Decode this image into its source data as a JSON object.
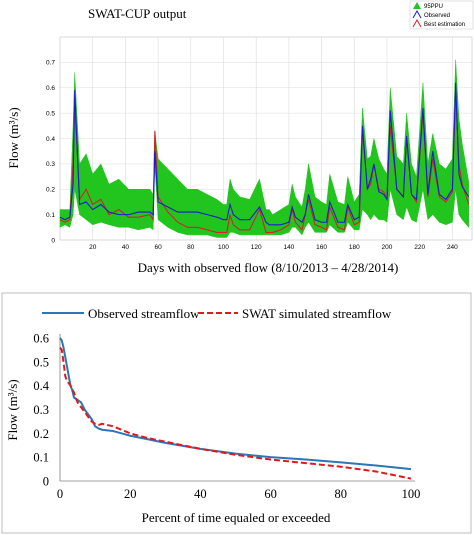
{
  "chart_data": [
    {
      "type": "area",
      "title": "SWAT-CUP output",
      "xlabel": "Days with observed flow (8/10/2013 – 4/28/2014)",
      "ylabel": "Flow (m³/s)",
      "xlim": [
        0,
        252
      ],
      "ylim": [
        0,
        0.8
      ],
      "x_ticks": [
        "20",
        "40",
        "60",
        "80",
        "100",
        "120",
        "140",
        "160",
        "180",
        "200",
        "220",
        "240"
      ],
      "y_ticks": [
        "0",
        "0.1",
        "0.2",
        "0.3",
        "0.4",
        "0.5",
        "0.6",
        "0.7"
      ],
      "grid": true,
      "legend_position": "top-right",
      "colors": {
        "band": "#22c51e",
        "observed": "#1c1ccf",
        "estimation": "#d4202a"
      },
      "series": [
        {
          "name": "95PPU",
          "kind": "band",
          "x": [
            0,
            3,
            6,
            8,
            9,
            12,
            16,
            20,
            25,
            30,
            36,
            42,
            48,
            55,
            57,
            58,
            60,
            66,
            72,
            78,
            84,
            90,
            96,
            100,
            102,
            104,
            106,
            110,
            116,
            122,
            126,
            128,
            130,
            135,
            140,
            142,
            144,
            148,
            150,
            152,
            156,
            160,
            163,
            165,
            170,
            174,
            176,
            180,
            183,
            185,
            188,
            190,
            192,
            195,
            198,
            200,
            202,
            206,
            210,
            212,
            215,
            218,
            222,
            225,
            228,
            232,
            236,
            240,
            242,
            244,
            246,
            250
          ],
          "lower": [
            0.05,
            0.06,
            0.05,
            0.1,
            0.2,
            0.1,
            0.08,
            0.06,
            0.07,
            0.06,
            0.05,
            0.05,
            0.04,
            0.05,
            0.04,
            0.3,
            0.08,
            0.05,
            0.03,
            0.02,
            0.02,
            0.02,
            0.01,
            0.01,
            0.01,
            0.03,
            0.03,
            0.02,
            0.02,
            0.02,
            0.02,
            0.02,
            0.02,
            0.02,
            0.03,
            0.05,
            0.05,
            0.02,
            0.05,
            0.07,
            0.03,
            0.03,
            0.03,
            0.06,
            0.03,
            0.03,
            0.07,
            0.04,
            0.04,
            0.12,
            0.1,
            0.08,
            0.1,
            0.08,
            0.08,
            0.07,
            0.2,
            0.1,
            0.08,
            0.13,
            0.08,
            0.07,
            0.2,
            0.08,
            0.1,
            0.07,
            0.06,
            0.07,
            0.2,
            0.1,
            0.08,
            0.05
          ],
          "upper": [
            0.12,
            0.12,
            0.12,
            0.45,
            0.66,
            0.3,
            0.34,
            0.26,
            0.3,
            0.22,
            0.24,
            0.2,
            0.2,
            0.2,
            0.18,
            0.43,
            0.32,
            0.28,
            0.24,
            0.2,
            0.2,
            0.18,
            0.16,
            0.14,
            0.14,
            0.24,
            0.2,
            0.17,
            0.16,
            0.24,
            0.12,
            0.12,
            0.1,
            0.12,
            0.14,
            0.22,
            0.17,
            0.13,
            0.2,
            0.3,
            0.17,
            0.15,
            0.14,
            0.26,
            0.15,
            0.14,
            0.25,
            0.15,
            0.18,
            0.52,
            0.32,
            0.33,
            0.4,
            0.32,
            0.28,
            0.26,
            0.6,
            0.33,
            0.3,
            0.5,
            0.3,
            0.25,
            0.62,
            0.3,
            0.42,
            0.3,
            0.28,
            0.32,
            0.71,
            0.48,
            0.38,
            0.23
          ]
        },
        {
          "name": "Observed",
          "x": [
            0,
            3,
            6,
            8,
            9,
            12,
            16,
            20,
            25,
            30,
            36,
            42,
            48,
            55,
            57,
            58,
            60,
            66,
            72,
            78,
            84,
            90,
            96,
            100,
            102,
            104,
            106,
            110,
            116,
            122,
            126,
            128,
            130,
            135,
            140,
            142,
            144,
            148,
            150,
            152,
            156,
            160,
            163,
            165,
            170,
            174,
            176,
            180,
            183,
            185,
            188,
            190,
            192,
            195,
            198,
            200,
            202,
            206,
            210,
            212,
            215,
            218,
            222,
            225,
            228,
            232,
            236,
            240,
            242,
            244,
            246,
            250
          ],
          "y": [
            0.09,
            0.08,
            0.09,
            0.22,
            0.59,
            0.14,
            0.15,
            0.12,
            0.14,
            0.11,
            0.1,
            0.1,
            0.11,
            0.11,
            0.1,
            0.35,
            0.15,
            0.13,
            0.11,
            0.11,
            0.11,
            0.1,
            0.09,
            0.08,
            0.08,
            0.14,
            0.1,
            0.08,
            0.08,
            0.13,
            0.07,
            0.06,
            0.06,
            0.06,
            0.07,
            0.13,
            0.09,
            0.07,
            0.1,
            0.18,
            0.08,
            0.07,
            0.07,
            0.15,
            0.07,
            0.07,
            0.14,
            0.08,
            0.09,
            0.45,
            0.2,
            0.24,
            0.3,
            0.19,
            0.18,
            0.16,
            0.51,
            0.2,
            0.17,
            0.41,
            0.18,
            0.16,
            0.52,
            0.18,
            0.35,
            0.18,
            0.16,
            0.2,
            0.62,
            0.26,
            0.21,
            0.17
          ]
        },
        {
          "name": "Best estimation",
          "x": [
            0,
            3,
            6,
            8,
            9,
            12,
            16,
            20,
            25,
            30,
            36,
            42,
            48,
            55,
            57,
            58,
            60,
            66,
            72,
            78,
            84,
            90,
            96,
            100,
            102,
            104,
            106,
            110,
            116,
            122,
            126,
            128,
            130,
            135,
            140,
            142,
            144,
            148,
            150,
            152,
            156,
            160,
            163,
            165,
            170,
            174,
            176,
            180,
            183,
            185,
            188,
            190,
            192,
            195,
            198,
            200,
            202,
            206,
            210,
            212,
            215,
            218,
            222,
            225,
            228,
            232,
            236,
            240,
            242,
            244,
            246,
            250
          ],
          "y": [
            0.08,
            0.07,
            0.08,
            0.3,
            0.54,
            0.16,
            0.2,
            0.14,
            0.16,
            0.1,
            0.12,
            0.09,
            0.09,
            0.1,
            0.08,
            0.43,
            0.17,
            0.11,
            0.07,
            0.05,
            0.05,
            0.04,
            0.03,
            0.03,
            0.03,
            0.1,
            0.06,
            0.04,
            0.04,
            0.12,
            0.03,
            0.03,
            0.03,
            0.04,
            0.06,
            0.12,
            0.07,
            0.04,
            0.1,
            0.16,
            0.06,
            0.05,
            0.04,
            0.13,
            0.05,
            0.04,
            0.13,
            0.06,
            0.07,
            0.43,
            0.2,
            0.22,
            0.3,
            0.2,
            0.19,
            0.16,
            0.45,
            0.2,
            0.17,
            0.4,
            0.18,
            0.15,
            0.5,
            0.17,
            0.32,
            0.17,
            0.15,
            0.19,
            0.58,
            0.3,
            0.22,
            0.14
          ]
        }
      ]
    },
    {
      "type": "line",
      "title": "",
      "xlabel": "Percent of time equaled or exceeded",
      "ylabel": "Flow (m³/s)",
      "xlim": [
        0,
        100
      ],
      "ylim": [
        0,
        0.6
      ],
      "x_ticks": [
        "0",
        "20",
        "40",
        "60",
        "80",
        "100"
      ],
      "y_ticks": [
        "0",
        "0.1",
        "0.2",
        "0.3",
        "0.4",
        "0.5",
        "0.6"
      ],
      "grid": false,
      "legend_position": "top",
      "colors": {
        "observed": "#2e75b6",
        "simulated": "#e0191d"
      },
      "series": [
        {
          "name": "Observed streamflow",
          "x": [
            0,
            0.5,
            1,
            1.5,
            2,
            2.5,
            3,
            3.5,
            4,
            5,
            6,
            7,
            8,
            9,
            10,
            11,
            12,
            15,
            20,
            25,
            30,
            40,
            50,
            60,
            70,
            80,
            90,
            100
          ],
          "y": [
            0.6,
            0.59,
            0.56,
            0.52,
            0.48,
            0.44,
            0.4,
            0.38,
            0.35,
            0.34,
            0.33,
            0.3,
            0.28,
            0.26,
            0.23,
            0.22,
            0.215,
            0.21,
            0.19,
            0.175,
            0.16,
            0.135,
            0.115,
            0.1,
            0.09,
            0.078,
            0.065,
            0.05
          ]
        },
        {
          "name": "SWAT simulated streamflow",
          "x": [
            0,
            0.5,
            1,
            1.5,
            2,
            2.5,
            3,
            4,
            5,
            6,
            7,
            8,
            9,
            10,
            11,
            12,
            15,
            20,
            25,
            30,
            40,
            50,
            60,
            70,
            80,
            85,
            90,
            95,
            100
          ],
          "y": [
            0.56,
            0.55,
            0.5,
            0.44,
            0.42,
            0.41,
            0.4,
            0.37,
            0.33,
            0.31,
            0.29,
            0.27,
            0.25,
            0.24,
            0.235,
            0.24,
            0.23,
            0.2,
            0.18,
            0.165,
            0.135,
            0.11,
            0.09,
            0.075,
            0.06,
            0.05,
            0.04,
            0.025,
            0.01
          ]
        }
      ]
    }
  ]
}
